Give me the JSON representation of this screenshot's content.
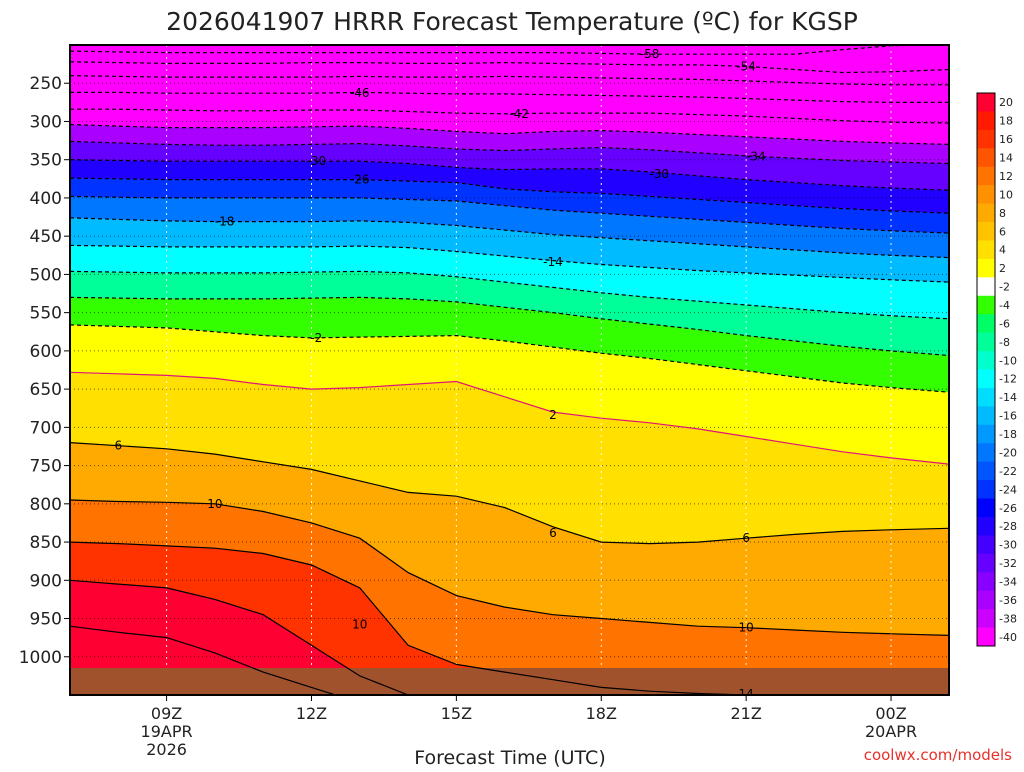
{
  "chart_data": {
    "type": "heatmap",
    "title": "2026041907 HRRR Forecast Temperature (ºC) for KGSP",
    "xlabel": "Forecast Time (UTC)",
    "ylabel": "",
    "credit": "coolwx.com/models",
    "x_range_hours": [
      7.0,
      25.2
    ],
    "y_range_hpa": [
      200,
      1050
    ],
    "x_ticks": [
      {
        "hour": 9,
        "label": "09Z",
        "sub1": "19APR",
        "sub2": "2026"
      },
      {
        "hour": 12,
        "label": "12Z",
        "sub1": "",
        "sub2": ""
      },
      {
        "hour": 15,
        "label": "15Z",
        "sub1": "",
        "sub2": ""
      },
      {
        "hour": 18,
        "label": "18Z",
        "sub1": "",
        "sub2": ""
      },
      {
        "hour": 21,
        "label": "21Z",
        "sub1": "",
        "sub2": ""
      },
      {
        "hour": 24,
        "label": "00Z",
        "sub1": "20APR",
        "sub2": ""
      }
    ],
    "y_ticks": [
      {
        "p": 250,
        "label": "250"
      },
      {
        "p": 300,
        "label": "300"
      },
      {
        "p": 350,
        "label": "350"
      },
      {
        "p": 400,
        "label": "400"
      },
      {
        "p": 450,
        "label": "450"
      },
      {
        "p": 500,
        "label": "500"
      },
      {
        "p": 550,
        "label": "550"
      },
      {
        "p": 600,
        "label": "600"
      },
      {
        "p": 650,
        "label": "650"
      },
      {
        "p": 700,
        "label": "700"
      },
      {
        "p": 750,
        "label": "750"
      },
      {
        "p": 800,
        "label": "800"
      },
      {
        "p": 850,
        "label": "850"
      },
      {
        "p": 900,
        "label": "900"
      },
      {
        "p": 950,
        "label": "950"
      },
      {
        "p": 1000,
        "label": "1000"
      }
    ],
    "colorbar": {
      "unit": "°C",
      "labels": [
        "20",
        "18",
        "16",
        "14",
        "12",
        "10",
        "8",
        "6",
        "4",
        "2",
        "-2",
        "-4",
        "-6",
        "-8",
        "-10",
        "-12",
        "-14",
        "-16",
        "-18",
        "-20",
        "-22",
        "-24",
        "-26",
        "-28",
        "-30",
        "-32",
        "-34",
        "-36",
        "-38",
        "-40"
      ],
      "colors": [
        "#ff0033",
        "#ff1a00",
        "#ff3300",
        "#ff5500",
        "#ff7300",
        "#ff9100",
        "#ffaa00",
        "#ffc300",
        "#ffe000",
        "#ffff00",
        "#ffffff",
        "#33ff00",
        "#00ff66",
        "#00ff99",
        "#00ffcc",
        "#00ffff",
        "#00ddff",
        "#00bbff",
        "#0099ff",
        "#0077ff",
        "#0055ff",
        "#0033ff",
        "#0000ff",
        "#2200ff",
        "#4400ff",
        "#6600ff",
        "#8800ff",
        "#aa00ff",
        "#cc00ff",
        "#ff00ff"
      ]
    },
    "times": [
      7.0,
      8.0,
      9.0,
      10.0,
      11.0,
      12.0,
      13.0,
      14.0,
      15.0,
      16.0,
      17.0,
      18.0,
      19.0,
      20.0,
      21.0,
      22.0,
      23.0,
      24.0,
      25.2
    ],
    "isotherms": [
      {
        "temp": -58,
        "p": [
          208,
          209,
          210,
          210,
          210,
          210,
          210,
          210,
          210,
          210,
          210,
          211,
          212,
          212,
          212,
          212,
          206,
          201,
          199
        ]
      },
      {
        "temp": -54,
        "p": [
          222,
          223,
          224,
          224,
          224,
          223,
          223,
          224,
          224,
          223,
          224,
          225,
          226,
          226,
          228,
          232,
          236,
          235,
          232
        ]
      },
      {
        "temp": -50,
        "p": [
          240,
          241,
          242,
          242,
          242,
          242,
          241,
          242,
          242,
          241,
          242,
          243,
          244,
          245,
          247,
          249,
          251,
          252,
          252
        ]
      },
      {
        "temp": -46,
        "p": [
          262,
          262,
          263,
          263,
          263,
          263,
          262,
          263,
          264,
          264,
          265,
          266,
          267,
          268,
          270,
          272,
          274,
          275,
          275
        ]
      },
      {
        "temp": -42,
        "p": [
          284,
          284,
          285,
          286,
          286,
          285,
          285,
          287,
          289,
          290,
          289,
          289,
          289,
          291,
          293,
          296,
          299,
          301,
          302
        ]
      },
      {
        "temp": -38,
        "p": [
          304,
          306,
          308,
          308,
          308,
          307,
          306,
          309,
          313,
          316,
          313,
          312,
          314,
          317,
          320,
          323,
          326,
          328,
          330
        ]
      },
      {
        "temp": -34,
        "p": [
          326,
          328,
          330,
          331,
          331,
          330,
          329,
          332,
          336,
          338,
          336,
          334,
          337,
          341,
          345,
          348,
          351,
          353,
          355
        ]
      },
      {
        "temp": -30,
        "p": [
          350,
          351,
          352,
          352,
          352,
          352,
          352,
          355,
          360,
          363,
          362,
          362,
          366,
          371,
          376,
          380,
          384,
          387,
          390
        ]
      },
      {
        "temp": -26,
        "p": [
          374,
          375,
          376,
          376,
          376,
          376,
          376,
          378,
          380,
          388,
          392,
          394,
          398,
          402,
          406,
          410,
          414,
          417,
          420
        ]
      },
      {
        "temp": -22,
        "p": [
          398,
          399,
          400,
          400,
          400,
          400,
          400,
          402,
          404,
          410,
          416,
          420,
          424,
          428,
          432,
          436,
          440,
          443,
          446
        ]
      },
      {
        "temp": -18,
        "p": [
          426,
          428,
          430,
          431,
          431,
          431,
          430,
          432,
          436,
          442,
          448,
          452,
          456,
          460,
          464,
          468,
          472,
          475,
          478
        ]
      },
      {
        "temp": -14,
        "p": [
          462,
          463,
          464,
          464,
          464,
          464,
          463,
          465,
          470,
          476,
          482,
          487,
          491,
          495,
          498,
          501,
          504,
          507,
          510
        ]
      },
      {
        "temp": -10,
        "p": [
          496,
          497,
          498,
          498,
          498,
          497,
          496,
          498,
          503,
          510,
          517,
          524,
          530,
          535,
          540,
          545,
          550,
          554,
          558
        ]
      },
      {
        "temp": -6,
        "p": [
          530,
          531,
          532,
          532,
          532,
          531,
          530,
          532,
          536,
          543,
          550,
          558,
          565,
          572,
          580,
          587,
          594,
          600,
          606
        ]
      },
      {
        "temp": -2,
        "p": [
          566,
          568,
          570,
          575,
          580,
          583,
          582,
          581,
          580,
          587,
          595,
          603,
          610,
          618,
          626,
          634,
          642,
          648,
          654
        ]
      },
      {
        "temp": 2,
        "p": [
          628,
          630,
          632,
          636,
          644,
          650,
          648,
          644,
          640,
          660,
          680,
          688,
          694,
          702,
          712,
          722,
          732,
          740,
          748
        ]
      },
      {
        "temp": 6,
        "p": [
          720,
          724,
          728,
          735,
          745,
          755,
          770,
          785,
          790,
          805,
          830,
          850,
          852,
          850,
          845,
          840,
          836,
          834,
          832
        ]
      },
      {
        "temp": 10,
        "p": [
          795,
          797,
          798,
          800,
          810,
          825,
          845,
          890,
          920,
          935,
          945,
          950,
          955,
          960,
          962,
          965,
          968,
          970,
          972
        ]
      },
      {
        "temp": 14,
        "p": [
          850,
          852,
          855,
          858,
          865,
          880,
          910,
          985,
          1010,
          1020,
          1030,
          1040,
          1045,
          1048,
          1050,
          1052,
          1053,
          1054,
          1055
        ]
      },
      {
        "temp": 18,
        "p": [
          900,
          905,
          910,
          925,
          945,
          985,
          1025,
          1050,
          1060,
          1068,
          1072,
          1076,
          1080,
          1082,
          1084,
          1086,
          1088,
          1090,
          1092
        ]
      },
      {
        "temp": 22,
        "p": [
          960,
          968,
          975,
          995,
          1020,
          1040,
          1060,
          1070,
          1080,
          1085,
          1090,
          1095,
          1100,
          1104,
          1108,
          1112,
          1116,
          1120,
          1124
        ]
      }
    ],
    "contour_labels": [
      {
        "text": "-58",
        "hour": 19.0,
        "p": 212
      },
      {
        "text": "-54",
        "hour": 21.0,
        "p": 228
      },
      {
        "text": "-46",
        "hour": 13.0,
        "p": 263
      },
      {
        "text": "-42",
        "hour": 16.3,
        "p": 290
      },
      {
        "text": "-34",
        "hour": 21.2,
        "p": 346
      },
      {
        "text": "-30",
        "hour": 12.1,
        "p": 352
      },
      {
        "text": "-30",
        "hour": 19.2,
        "p": 369
      },
      {
        "text": "-26",
        "hour": 13.0,
        "p": 376
      },
      {
        "text": "-18",
        "hour": 10.2,
        "p": 431
      },
      {
        "text": "-14",
        "hour": 17.0,
        "p": 484
      },
      {
        "text": "-2",
        "hour": 12.1,
        "p": 583
      },
      {
        "text": "2",
        "hour": 17.0,
        "p": 684
      },
      {
        "text": "6",
        "hour": 8.0,
        "p": 724
      },
      {
        "text": "10",
        "hour": 10.0,
        "p": 800
      },
      {
        "text": "6",
        "hour": 17.0,
        "p": 838
      },
      {
        "text": "6",
        "hour": 21.0,
        "p": 845
      },
      {
        "text": "10",
        "hour": 13.0,
        "p": 958
      },
      {
        "text": "10",
        "hour": 21.0,
        "p": 962
      },
      {
        "text": "14",
        "hour": 21.0,
        "p": 1049
      }
    ]
  }
}
